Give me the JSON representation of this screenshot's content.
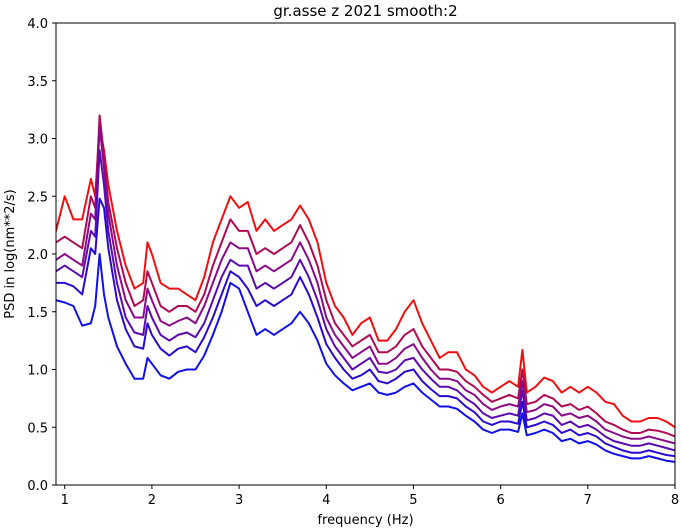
{
  "chart_data": {
    "type": "line",
    "title": "gr.asse z 2021 smooth:2",
    "xlabel": "frequency (Hz)",
    "ylabel": "PSD in log(nm**2/s)",
    "xlim": [
      0.9,
      8.0
    ],
    "ylim": [
      0.0,
      4.0
    ],
    "xticks": [
      "1",
      "2",
      "3",
      "4",
      "5",
      "6",
      "7",
      "8"
    ],
    "yticks": [
      "0.0",
      "0.5",
      "1.0",
      "1.5",
      "2.0",
      "2.5",
      "3.0",
      "3.5",
      "4.0"
    ],
    "grid": false,
    "legend": "none",
    "series": [
      {
        "color": "#ee1010",
        "x": [
          0.9,
          1.0,
          1.1,
          1.2,
          1.3,
          1.35,
          1.4,
          1.45,
          1.5,
          1.6,
          1.7,
          1.8,
          1.9,
          1.95,
          2.0,
          2.1,
          2.2,
          2.3,
          2.4,
          2.5,
          2.6,
          2.7,
          2.8,
          2.9,
          3.0,
          3.1,
          3.2,
          3.3,
          3.4,
          3.5,
          3.6,
          3.7,
          3.8,
          3.9,
          4.0,
          4.1,
          4.2,
          4.3,
          4.4,
          4.5,
          4.6,
          4.7,
          4.8,
          4.9,
          5.0,
          5.1,
          5.2,
          5.3,
          5.4,
          5.5,
          5.6,
          5.7,
          5.8,
          5.9,
          6.0,
          6.1,
          6.2,
          6.25,
          6.3,
          6.4,
          6.5,
          6.6,
          6.7,
          6.8,
          6.9,
          7.0,
          7.1,
          7.2,
          7.3,
          7.4,
          7.5,
          7.6,
          7.7,
          7.8,
          7.9,
          8.0
        ],
        "y": [
          2.2,
          2.5,
          2.3,
          2.3,
          2.65,
          2.5,
          3.1,
          2.9,
          2.6,
          2.2,
          1.9,
          1.7,
          1.75,
          2.1,
          2.0,
          1.75,
          1.7,
          1.7,
          1.65,
          1.6,
          1.8,
          2.1,
          2.3,
          2.5,
          2.4,
          2.45,
          2.2,
          2.3,
          2.2,
          2.25,
          2.3,
          2.42,
          2.3,
          2.1,
          1.75,
          1.55,
          1.45,
          1.3,
          1.4,
          1.45,
          1.25,
          1.25,
          1.35,
          1.5,
          1.6,
          1.4,
          1.25,
          1.1,
          1.15,
          1.15,
          1.0,
          0.95,
          0.85,
          0.8,
          0.85,
          0.9,
          0.85,
          1.17,
          0.8,
          0.85,
          0.93,
          0.9,
          0.8,
          0.85,
          0.8,
          0.85,
          0.8,
          0.72,
          0.7,
          0.6,
          0.55,
          0.55,
          0.58,
          0.58,
          0.55,
          0.5
        ]
      },
      {
        "color": "#b00a55",
        "x": [
          0.9,
          1.0,
          1.1,
          1.2,
          1.3,
          1.35,
          1.4,
          1.45,
          1.5,
          1.6,
          1.7,
          1.8,
          1.9,
          1.95,
          2.0,
          2.1,
          2.2,
          2.3,
          2.4,
          2.5,
          2.6,
          2.7,
          2.8,
          2.9,
          3.0,
          3.1,
          3.2,
          3.3,
          3.4,
          3.5,
          3.6,
          3.7,
          3.8,
          3.9,
          4.0,
          4.1,
          4.2,
          4.3,
          4.4,
          4.5,
          4.6,
          4.7,
          4.8,
          4.9,
          5.0,
          5.1,
          5.2,
          5.3,
          5.4,
          5.5,
          5.6,
          5.7,
          5.8,
          5.9,
          6.0,
          6.1,
          6.2,
          6.25,
          6.3,
          6.4,
          6.5,
          6.6,
          6.7,
          6.8,
          6.9,
          7.0,
          7.1,
          7.2,
          7.3,
          7.4,
          7.5,
          7.6,
          7.7,
          7.8,
          7.9,
          8.0
        ],
        "y": [
          2.1,
          2.15,
          2.1,
          2.05,
          2.5,
          2.4,
          3.2,
          2.85,
          2.45,
          2.05,
          1.75,
          1.55,
          1.6,
          1.85,
          1.75,
          1.55,
          1.5,
          1.55,
          1.55,
          1.5,
          1.65,
          1.9,
          2.1,
          2.3,
          2.2,
          2.2,
          2.0,
          2.05,
          2.0,
          2.05,
          2.1,
          2.25,
          2.1,
          1.9,
          1.6,
          1.4,
          1.3,
          1.2,
          1.25,
          1.3,
          1.15,
          1.15,
          1.2,
          1.3,
          1.35,
          1.2,
          1.1,
          1.0,
          1.0,
          0.98,
          0.9,
          0.85,
          0.78,
          0.72,
          0.75,
          0.78,
          0.75,
          1.0,
          0.7,
          0.72,
          0.78,
          0.75,
          0.68,
          0.7,
          0.65,
          0.68,
          0.62,
          0.55,
          0.52,
          0.48,
          0.45,
          0.45,
          0.48,
          0.47,
          0.45,
          0.42
        ]
      },
      {
        "color": "#8a0a8a",
        "x": [
          0.9,
          1.0,
          1.1,
          1.2,
          1.3,
          1.35,
          1.4,
          1.45,
          1.5,
          1.6,
          1.7,
          1.8,
          1.9,
          1.95,
          2.0,
          2.1,
          2.2,
          2.3,
          2.4,
          2.5,
          2.6,
          2.7,
          2.8,
          2.9,
          3.0,
          3.1,
          3.2,
          3.3,
          3.4,
          3.5,
          3.6,
          3.7,
          3.8,
          3.9,
          4.0,
          4.1,
          4.2,
          4.3,
          4.4,
          4.5,
          4.6,
          4.7,
          4.8,
          4.9,
          5.0,
          5.1,
          5.2,
          5.3,
          5.4,
          5.5,
          5.6,
          5.7,
          5.8,
          5.9,
          6.0,
          6.1,
          6.2,
          6.25,
          6.3,
          6.4,
          6.5,
          6.6,
          6.7,
          6.8,
          6.9,
          7.0,
          7.1,
          7.2,
          7.3,
          7.4,
          7.5,
          7.6,
          7.7,
          7.8,
          7.9,
          8.0
        ],
        "y": [
          1.95,
          2.0,
          1.95,
          1.9,
          2.35,
          2.3,
          3.1,
          2.75,
          2.35,
          1.9,
          1.6,
          1.45,
          1.45,
          1.7,
          1.6,
          1.42,
          1.38,
          1.42,
          1.45,
          1.4,
          1.55,
          1.75,
          1.95,
          2.1,
          2.05,
          2.05,
          1.85,
          1.9,
          1.85,
          1.9,
          1.95,
          2.1,
          1.95,
          1.75,
          1.45,
          1.3,
          1.2,
          1.1,
          1.15,
          1.2,
          1.05,
          1.05,
          1.1,
          1.18,
          1.22,
          1.1,
          1.0,
          0.92,
          0.92,
          0.9,
          0.82,
          0.78,
          0.7,
          0.65,
          0.68,
          0.7,
          0.68,
          0.9,
          0.63,
          0.65,
          0.7,
          0.68,
          0.6,
          0.62,
          0.58,
          0.6,
          0.55,
          0.48,
          0.45,
          0.42,
          0.4,
          0.4,
          0.42,
          0.4,
          0.38,
          0.36
        ]
      },
      {
        "color": "#5a0ab0",
        "x": [
          0.9,
          1.0,
          1.1,
          1.2,
          1.3,
          1.35,
          1.4,
          1.45,
          1.5,
          1.6,
          1.7,
          1.8,
          1.9,
          1.95,
          2.0,
          2.1,
          2.2,
          2.3,
          2.4,
          2.5,
          2.6,
          2.7,
          2.8,
          2.9,
          3.0,
          3.1,
          3.2,
          3.3,
          3.4,
          3.5,
          3.6,
          3.7,
          3.8,
          3.9,
          4.0,
          4.1,
          4.2,
          4.3,
          4.4,
          4.5,
          4.6,
          4.7,
          4.8,
          4.9,
          5.0,
          5.1,
          5.2,
          5.3,
          5.4,
          5.5,
          5.6,
          5.7,
          5.8,
          5.9,
          6.0,
          6.1,
          6.2,
          6.25,
          6.3,
          6.4,
          6.5,
          6.6,
          6.7,
          6.8,
          6.9,
          7.0,
          7.1,
          7.2,
          7.3,
          7.4,
          7.5,
          7.6,
          7.7,
          7.8,
          7.9,
          8.0
        ],
        "y": [
          1.85,
          1.9,
          1.85,
          1.8,
          2.2,
          2.15,
          2.9,
          2.6,
          2.2,
          1.75,
          1.45,
          1.32,
          1.3,
          1.55,
          1.45,
          1.3,
          1.25,
          1.3,
          1.32,
          1.28,
          1.4,
          1.6,
          1.8,
          1.95,
          1.9,
          1.9,
          1.7,
          1.75,
          1.7,
          1.75,
          1.8,
          1.95,
          1.8,
          1.6,
          1.35,
          1.2,
          1.1,
          1.0,
          1.05,
          1.1,
          0.98,
          0.97,
          1.0,
          1.08,
          1.1,
          1.0,
          0.92,
          0.85,
          0.85,
          0.82,
          0.75,
          0.7,
          0.62,
          0.58,
          0.6,
          0.62,
          0.6,
          0.82,
          0.56,
          0.58,
          0.62,
          0.6,
          0.52,
          0.55,
          0.5,
          0.52,
          0.48,
          0.42,
          0.38,
          0.36,
          0.34,
          0.34,
          0.36,
          0.34,
          0.32,
          0.3
        ]
      },
      {
        "color": "#2a0ad0",
        "x": [
          0.9,
          1.0,
          1.1,
          1.2,
          1.3,
          1.35,
          1.4,
          1.45,
          1.5,
          1.6,
          1.7,
          1.8,
          1.9,
          1.95,
          2.0,
          2.1,
          2.2,
          2.3,
          2.4,
          2.5,
          2.6,
          2.7,
          2.8,
          2.9,
          3.0,
          3.1,
          3.2,
          3.3,
          3.4,
          3.5,
          3.6,
          3.7,
          3.8,
          3.9,
          4.0,
          4.1,
          4.2,
          4.3,
          4.4,
          4.5,
          4.6,
          4.7,
          4.8,
          4.9,
          5.0,
          5.1,
          5.2,
          5.3,
          5.4,
          5.5,
          5.6,
          5.7,
          5.8,
          5.9,
          6.0,
          6.1,
          6.2,
          6.25,
          6.3,
          6.4,
          6.5,
          6.6,
          6.7,
          6.8,
          6.9,
          7.0,
          7.1,
          7.2,
          7.3,
          7.4,
          7.5,
          7.6,
          7.7,
          7.8,
          7.9,
          8.0
        ],
        "y": [
          1.75,
          1.75,
          1.72,
          1.65,
          2.05,
          2.0,
          2.48,
          2.4,
          2.05,
          1.6,
          1.35,
          1.2,
          1.18,
          1.4,
          1.3,
          1.18,
          1.12,
          1.18,
          1.2,
          1.15,
          1.28,
          1.45,
          1.65,
          1.85,
          1.8,
          1.7,
          1.55,
          1.6,
          1.55,
          1.6,
          1.65,
          1.8,
          1.65,
          1.45,
          1.22,
          1.1,
          1.0,
          0.92,
          0.95,
          1.0,
          0.9,
          0.88,
          0.92,
          0.98,
          1.0,
          0.9,
          0.83,
          0.77,
          0.77,
          0.75,
          0.68,
          0.63,
          0.55,
          0.52,
          0.55,
          0.55,
          0.53,
          0.72,
          0.5,
          0.52,
          0.55,
          0.52,
          0.45,
          0.48,
          0.43,
          0.45,
          0.42,
          0.36,
          0.33,
          0.3,
          0.28,
          0.28,
          0.3,
          0.28,
          0.26,
          0.25
        ]
      },
      {
        "color": "#1010e8",
        "x": [
          0.9,
          1.0,
          1.1,
          1.2,
          1.3,
          1.35,
          1.4,
          1.45,
          1.5,
          1.6,
          1.7,
          1.8,
          1.9,
          1.95,
          2.0,
          2.1,
          2.2,
          2.3,
          2.4,
          2.5,
          2.6,
          2.7,
          2.8,
          2.9,
          3.0,
          3.1,
          3.2,
          3.3,
          3.4,
          3.5,
          3.6,
          3.7,
          3.8,
          3.9,
          4.0,
          4.1,
          4.2,
          4.3,
          4.4,
          4.5,
          4.6,
          4.7,
          4.8,
          4.9,
          5.0,
          5.1,
          5.2,
          5.3,
          5.4,
          5.5,
          5.6,
          5.7,
          5.8,
          5.9,
          6.0,
          6.1,
          6.2,
          6.25,
          6.3,
          6.4,
          6.5,
          6.6,
          6.7,
          6.8,
          6.9,
          7.0,
          7.1,
          7.2,
          7.3,
          7.4,
          7.5,
          7.6,
          7.7,
          7.8,
          7.9,
          8.0
        ],
        "y": [
          1.6,
          1.58,
          1.55,
          1.38,
          1.4,
          1.55,
          2.0,
          1.65,
          1.45,
          1.2,
          1.05,
          0.92,
          0.92,
          1.1,
          1.05,
          0.95,
          0.92,
          0.98,
          1.0,
          1.0,
          1.12,
          1.3,
          1.5,
          1.75,
          1.7,
          1.5,
          1.3,
          1.35,
          1.3,
          1.35,
          1.4,
          1.5,
          1.4,
          1.25,
          1.05,
          0.95,
          0.88,
          0.82,
          0.85,
          0.88,
          0.8,
          0.78,
          0.8,
          0.85,
          0.88,
          0.8,
          0.74,
          0.68,
          0.68,
          0.66,
          0.6,
          0.55,
          0.48,
          0.45,
          0.48,
          0.48,
          0.46,
          0.62,
          0.43,
          0.45,
          0.48,
          0.45,
          0.38,
          0.4,
          0.36,
          0.38,
          0.35,
          0.3,
          0.27,
          0.25,
          0.23,
          0.23,
          0.25,
          0.23,
          0.21,
          0.2
        ]
      }
    ]
  }
}
